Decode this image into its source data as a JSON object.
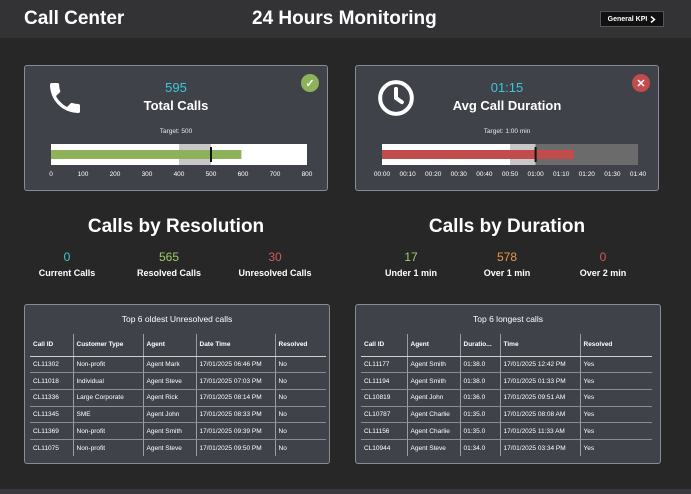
{
  "header": {
    "app_title": "Call Center",
    "page_title": "24 Hours Monitoring",
    "kpi_button_label": "General KPI",
    "kpi_button_icon": "chevron-right-icon"
  },
  "kpis": {
    "total_calls": {
      "value": "595",
      "label": "Total Calls",
      "target_text": "Target: 500",
      "icon": "phone-icon",
      "status": "ok",
      "status_icon": "check-icon",
      "status_glyph": "✓",
      "scale": {
        "min": 0,
        "max": 800,
        "ranges": [
          400,
          500,
          800
        ]
      },
      "actual": 595,
      "target": 500,
      "ticks": [
        "0",
        "100",
        "200",
        "300",
        "400",
        "500",
        "600",
        "700",
        "800"
      ],
      "bar_color": "#8db25a"
    },
    "avg_duration": {
      "value": "01:15",
      "label": "Avg Call Duration",
      "target_text": "Target: 1:00 min",
      "icon": "clock-icon",
      "status": "bad",
      "status_icon": "close-icon",
      "status_glyph": "✕",
      "scale": {
        "min": 0,
        "max": 100,
        "ranges": [
          50,
          60,
          100
        ]
      },
      "actual": 75,
      "target": 60,
      "ticks": [
        "00:00",
        "00:10",
        "00:20",
        "00:30",
        "00:40",
        "00:50",
        "01:00",
        "01:10",
        "01:20",
        "01:30",
        "01:40"
      ],
      "bar_color": "#c24b4b"
    }
  },
  "resolution": {
    "title": "Calls by Resolution",
    "stats": [
      {
        "value": "0",
        "label": "Current Calls",
        "color": "#3cc8d8"
      },
      {
        "value": "565",
        "label": "Resolved Calls",
        "color": "#9acd6a"
      },
      {
        "value": "30",
        "label": "Unresolved Calls",
        "color": "#d05a5a"
      }
    ]
  },
  "duration": {
    "title": "Calls by Duration",
    "stats": [
      {
        "value": "17",
        "label": "Under 1 min",
        "color": "#9acd6a"
      },
      {
        "value": "578",
        "label": "Over 1 min",
        "color": "#e8964a"
      },
      {
        "value": "0",
        "label": "Over 2 min",
        "color": "#d05a5a"
      }
    ]
  },
  "unresolved_table": {
    "title": "Top 6 oldest Unresolved calls",
    "columns": [
      "Call ID",
      "Customer Type",
      "Agent",
      "Date Time",
      "Resolved"
    ],
    "rows": [
      [
        "CL11302",
        "Non-profit",
        "Agent Mark",
        "17/01/2025 06:46 PM",
        "No"
      ],
      [
        "CL11018",
        "Individual",
        "Agent Steve",
        "17/01/2025 07:03 PM",
        "No"
      ],
      [
        "CL11336",
        "Large Corporate",
        "Agent Rick",
        "17/01/2025 08:14 PM",
        "No"
      ],
      [
        "CL11345",
        "SME",
        "Agent John",
        "17/01/2025 08:33 PM",
        "No"
      ],
      [
        "CL11369",
        "Non-profit",
        "Agent Smith",
        "17/01/2025 09:39 PM",
        "No"
      ],
      [
        "CL11075",
        "Non-profit",
        "Agent Steve",
        "17/01/2025 09:50 PM",
        "No"
      ]
    ]
  },
  "longest_table": {
    "title": "Top 6 longest calls",
    "columns": [
      "Call ID",
      "Agent",
      "Duratio...",
      "Time",
      "Resolved"
    ],
    "rows": [
      [
        "CL11177",
        "Agent Smith",
        "01:38.0",
        "17/01/2025 12:42 PM",
        "Yes"
      ],
      [
        "CL11194",
        "Agent Smith",
        "01:38.0",
        "17/01/2025 01:33 PM",
        "Yes"
      ],
      [
        "CL10819",
        "Agent John",
        "01:36.0",
        "17/01/2025 09:51 AM",
        "Yes"
      ],
      [
        "CL10787",
        "Agent Charlie",
        "01:35.0",
        "17/01/2025 08:08 AM",
        "Yes"
      ],
      [
        "CL11156",
        "Agent Charlie",
        "01:35.0",
        "17/01/2025 11:33 AM",
        "Yes"
      ],
      [
        "CL10944",
        "Agent Steve",
        "01:34.0",
        "17/01/2025 03:34 PM",
        "Yes"
      ]
    ]
  }
}
